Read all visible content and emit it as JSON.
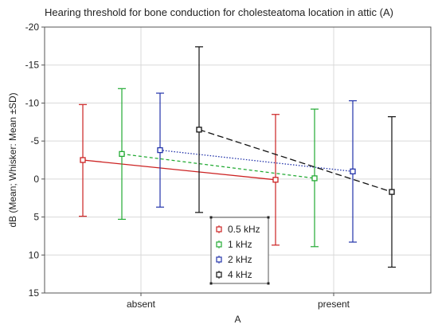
{
  "chart_data": {
    "type": "line",
    "title": "Hearing threshold for bone conduction for cholesteatoma location in attic (A)",
    "xlabel": "A",
    "ylabel": "dB (Mean; Whisker: Mean ±SD)",
    "categories": [
      "absent",
      "present"
    ],
    "ylim": [
      15,
      -20
    ],
    "y_inverted": true,
    "yticks": [
      15,
      10,
      5,
      0,
      -5,
      -10,
      -15,
      -20
    ],
    "grid": true,
    "legend_position": "bottom-center",
    "series": [
      {
        "name": "0.5 kHz",
        "color": "#cc2222",
        "dash": "solid",
        "mean": [
          -2.5,
          0.1
        ],
        "sd_low": [
          4.9,
          8.7
        ],
        "sd_high": [
          -9.8,
          -8.5
        ]
      },
      {
        "name": "1 kHz",
        "color": "#22aa33",
        "dash": "short-dash",
        "mean": [
          -3.3,
          -0.1
        ],
        "sd_low": [
          5.3,
          8.9
        ],
        "sd_high": [
          -11.9,
          -9.2
        ]
      },
      {
        "name": "2 kHz",
        "color": "#2233aa",
        "dash": "dotted",
        "mean": [
          -3.8,
          -1.0
        ],
        "sd_low": [
          3.7,
          8.3
        ],
        "sd_high": [
          -11.3,
          -10.3
        ]
      },
      {
        "name": "4 kHz",
        "color": "#111111",
        "dash": "long-dash",
        "mean": [
          -6.5,
          1.7
        ],
        "sd_low": [
          4.4,
          11.6
        ],
        "sd_high": [
          -17.4,
          -8.2
        ]
      }
    ]
  }
}
